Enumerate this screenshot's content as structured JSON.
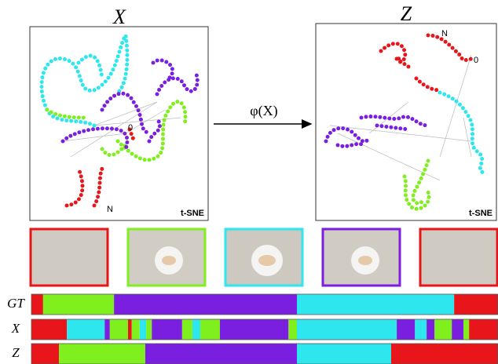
{
  "panels": [
    {
      "title": "X",
      "method": "t-SNE",
      "start_label": "0",
      "end_label": "N"
    },
    {
      "title": "Z",
      "method": "t-SNE",
      "start_label": "0",
      "end_label": "N"
    }
  ],
  "mapping": {
    "label": "φ(X)"
  },
  "segmentations": {
    "colors": [
      "#e8161b",
      "#7fef1e",
      "#7a1fe0",
      "#2ee6ee"
    ],
    "range": [
      0,
      100
    ],
    "rows": [
      {
        "label": "GT",
        "segments": [
          {
            "start": 0,
            "end": 2.5,
            "class": 0
          },
          {
            "start": 2.5,
            "end": 17.7,
            "class": 1
          },
          {
            "start": 17.7,
            "end": 56.9,
            "class": 2
          },
          {
            "start": 56.9,
            "end": 90.6,
            "class": 3
          },
          {
            "start": 90.6,
            "end": 100,
            "class": 0
          }
        ]
      },
      {
        "label": "X",
        "segments": [
          {
            "start": 0,
            "end": 7.6,
            "class": 0
          },
          {
            "start": 7.6,
            "end": 15.7,
            "class": 3
          },
          {
            "start": 15.7,
            "end": 16.8,
            "class": 2
          },
          {
            "start": 16.8,
            "end": 20.7,
            "class": 1
          },
          {
            "start": 20.7,
            "end": 21.5,
            "class": 0
          },
          {
            "start": 21.5,
            "end": 23.2,
            "class": 1
          },
          {
            "start": 23.2,
            "end": 24.6,
            "class": 3
          },
          {
            "start": 24.6,
            "end": 25.8,
            "class": 1
          },
          {
            "start": 25.8,
            "end": 32.3,
            "class": 2
          },
          {
            "start": 32.3,
            "end": 34.5,
            "class": 1
          },
          {
            "start": 34.5,
            "end": 36.2,
            "class": 3
          },
          {
            "start": 36.2,
            "end": 40.4,
            "class": 1
          },
          {
            "start": 40.4,
            "end": 55.1,
            "class": 2
          },
          {
            "start": 55.1,
            "end": 56.9,
            "class": 1
          },
          {
            "start": 56.9,
            "end": 78.3,
            "class": 3
          },
          {
            "start": 78.3,
            "end": 82.2,
            "class": 2
          },
          {
            "start": 82.2,
            "end": 84.7,
            "class": 3
          },
          {
            "start": 84.7,
            "end": 86.4,
            "class": 2
          },
          {
            "start": 86.4,
            "end": 90.1,
            "class": 1
          },
          {
            "start": 90.1,
            "end": 92.6,
            "class": 2
          },
          {
            "start": 92.6,
            "end": 93.8,
            "class": 1
          },
          {
            "start": 93.8,
            "end": 100,
            "class": 0
          }
        ]
      },
      {
        "label": "Z",
        "segments": [
          {
            "start": 0,
            "end": 5.9,
            "class": 0
          },
          {
            "start": 5.9,
            "end": 24.4,
            "class": 1
          },
          {
            "start": 24.4,
            "end": 56.9,
            "class": 2
          },
          {
            "start": 56.9,
            "end": 77.1,
            "class": 3
          },
          {
            "start": 77.1,
            "end": 100,
            "class": 0
          }
        ]
      }
    ]
  }
}
